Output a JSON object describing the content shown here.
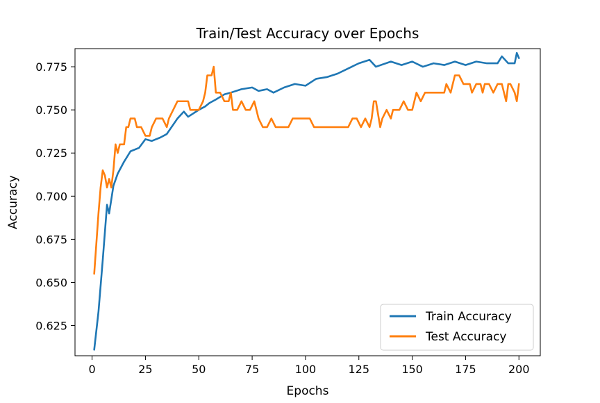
{
  "chart_data": {
    "type": "line",
    "title": "Train/Test Accuracy over Epochs",
    "xlabel": "Epochs",
    "ylabel": "Accuracy",
    "xlim": [
      -8,
      210
    ],
    "ylim": [
      0.6075,
      0.7855
    ],
    "xticks": [
      0,
      25,
      50,
      75,
      100,
      125,
      150,
      175,
      200
    ],
    "yticks": [
      0.625,
      0.65,
      0.675,
      0.7,
      0.725,
      0.75,
      0.775
    ],
    "xtick_labels": [
      "0",
      "25",
      "50",
      "75",
      "100",
      "125",
      "150",
      "175",
      "200"
    ],
    "ytick_labels": [
      "0.625",
      "0.650",
      "0.675",
      "0.700",
      "0.725",
      "0.750",
      "0.775"
    ],
    "grid": false,
    "legend_position": "lower right",
    "series": [
      {
        "name": "Train Accuracy",
        "color": "#1f77b4",
        "x": [
          1,
          3,
          5,
          7,
          8,
          10,
          12,
          15,
          18,
          22,
          25,
          28,
          32,
          35,
          40,
          43,
          45,
          50,
          53,
          55,
          58,
          62,
          65,
          70,
          75,
          78,
          82,
          85,
          90,
          95,
          100,
          105,
          110,
          115,
          120,
          125,
          130,
          133,
          140,
          145,
          150,
          155,
          160,
          165,
          170,
          175,
          180,
          185,
          190,
          192,
          195,
          198,
          199,
          200
        ],
        "y": [
          0.611,
          0.633,
          0.663,
          0.695,
          0.69,
          0.706,
          0.713,
          0.72,
          0.726,
          0.728,
          0.733,
          0.732,
          0.734,
          0.736,
          0.745,
          0.749,
          0.746,
          0.75,
          0.752,
          0.754,
          0.756,
          0.759,
          0.76,
          0.762,
          0.763,
          0.761,
          0.762,
          0.76,
          0.763,
          0.765,
          0.764,
          0.768,
          0.769,
          0.771,
          0.774,
          0.777,
          0.779,
          0.775,
          0.778,
          0.776,
          0.778,
          0.775,
          0.777,
          0.776,
          0.778,
          0.776,
          0.778,
          0.777,
          0.777,
          0.781,
          0.777,
          0.777,
          0.783,
          0.78
        ]
      },
      {
        "name": "Test Accuracy",
        "color": "#ff7f0e",
        "x": [
          1,
          3,
          4,
          5,
          6,
          7,
          8,
          9,
          10,
          11,
          12,
          13,
          15,
          16,
          17,
          18,
          19,
          20,
          21,
          22,
          23,
          25,
          27,
          28,
          30,
          32,
          33,
          35,
          36,
          38,
          40,
          42,
          44,
          45,
          46,
          48,
          50,
          52,
          53,
          54,
          55,
          56,
          57,
          58,
          60,
          62,
          64,
          65,
          66,
          68,
          70,
          72,
          74,
          76,
          77,
          78,
          80,
          82,
          84,
          86,
          88,
          90,
          92,
          94,
          96,
          98,
          100,
          102,
          104,
          106,
          108,
          110,
          112,
          114,
          116,
          118,
          120,
          122,
          124,
          126,
          128,
          130,
          131,
          132,
          133,
          135,
          136,
          138,
          140,
          141,
          142,
          144,
          146,
          148,
          150,
          152,
          154,
          156,
          158,
          160,
          162,
          164,
          165,
          166,
          168,
          170,
          172,
          174,
          176,
          177,
          178,
          180,
          182,
          183,
          184,
          186,
          188,
          190,
          192,
          194,
          195,
          196,
          198,
          199,
          200
        ],
        "y": [
          0.655,
          0.69,
          0.705,
          0.715,
          0.712,
          0.705,
          0.71,
          0.705,
          0.715,
          0.73,
          0.725,
          0.73,
          0.73,
          0.74,
          0.74,
          0.745,
          0.745,
          0.745,
          0.74,
          0.74,
          0.74,
          0.735,
          0.735,
          0.74,
          0.745,
          0.745,
          0.745,
          0.74,
          0.745,
          0.75,
          0.755,
          0.755,
          0.755,
          0.755,
          0.75,
          0.75,
          0.75,
          0.755,
          0.76,
          0.77,
          0.77,
          0.77,
          0.775,
          0.76,
          0.76,
          0.755,
          0.755,
          0.76,
          0.75,
          0.75,
          0.755,
          0.75,
          0.75,
          0.755,
          0.75,
          0.745,
          0.74,
          0.74,
          0.745,
          0.74,
          0.74,
          0.74,
          0.74,
          0.745,
          0.745,
          0.745,
          0.745,
          0.745,
          0.74,
          0.74,
          0.74,
          0.74,
          0.74,
          0.74,
          0.74,
          0.74,
          0.74,
          0.745,
          0.745,
          0.74,
          0.745,
          0.74,
          0.745,
          0.755,
          0.755,
          0.74,
          0.745,
          0.75,
          0.745,
          0.75,
          0.75,
          0.75,
          0.755,
          0.75,
          0.75,
          0.76,
          0.755,
          0.76,
          0.76,
          0.76,
          0.76,
          0.76,
          0.76,
          0.765,
          0.76,
          0.77,
          0.77,
          0.765,
          0.765,
          0.765,
          0.76,
          0.765,
          0.765,
          0.76,
          0.765,
          0.765,
          0.76,
          0.765,
          0.765,
          0.755,
          0.765,
          0.765,
          0.76,
          0.755,
          0.765
        ]
      }
    ]
  }
}
